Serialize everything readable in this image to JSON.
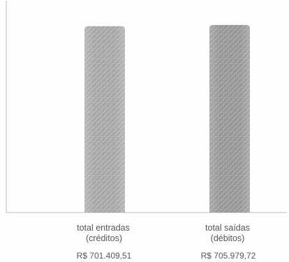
{
  "chart_data": {
    "type": "bar",
    "categories": [
      [
        "total entradas",
        "(créditos)"
      ],
      [
        "total saídas",
        "(débitos)"
      ]
    ],
    "values": [
      701409.51,
      705979.72
    ],
    "value_labels": [
      "R$ 701.409,51",
      "R$ 705.979,72"
    ],
    "ylim": [
      0,
      800000
    ],
    "grid": false,
    "legend": false
  },
  "colors": {
    "background": "#fdfdfd",
    "axis": "#bdbdbd",
    "bars": [
      "#acacac",
      "#9c9c9c"
    ],
    "text": "#575757"
  }
}
